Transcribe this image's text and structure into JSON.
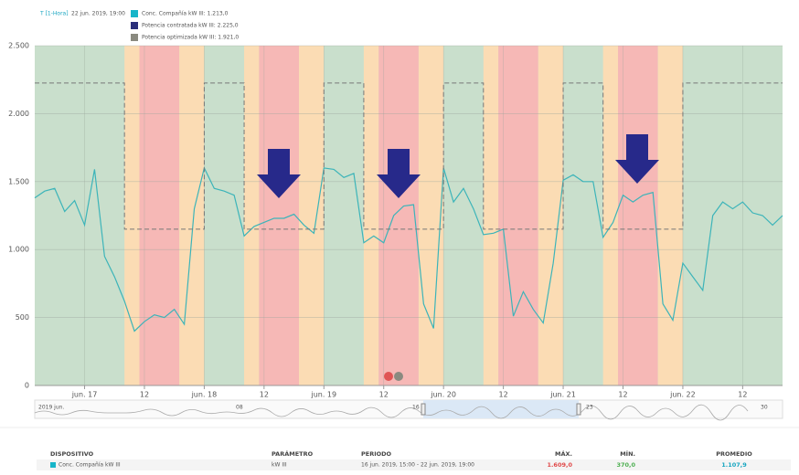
{
  "header": {
    "mode": "T [1-Hora]",
    "time": "22 jun. 2019, 19:00"
  },
  "tooltip": [
    {
      "name": "Conc. Compañía kW III: 1.213,0",
      "color": "#17b5c9"
    },
    {
      "name": "Potencia contratada kW III: 2.225,0",
      "color": "#2a2f7a"
    },
    {
      "name": "Potencia optimizada kW III: 1.921,0",
      "color": "#8a8a80"
    }
  ],
  "chart_data": {
    "type": "line",
    "background": "#c9dfcc",
    "grid": true,
    "ylim": [
      0,
      2500
    ],
    "yticks": [
      0,
      500,
      {
        "value": 1000,
        "label": "1.000"
      },
      {
        "value": 1500,
        "label": "1.500"
      },
      {
        "value": 2000,
        "label": "2.000"
      },
      {
        "value": 2500,
        "label": "2.500"
      }
    ],
    "xlim": [
      "2019-06-16 14:00",
      "2019-06-22 20:00"
    ],
    "xticks": [
      {
        "value": "2019-06-17 00:00",
        "label": "jun. 17"
      },
      {
        "value": "2019-06-17 12:00",
        "label": "12"
      },
      {
        "value": "2019-06-18 00:00",
        "label": "jun. 18"
      },
      {
        "value": "2019-06-18 12:00",
        "label": "12"
      },
      {
        "value": "2019-06-19 00:00",
        "label": "jun. 19"
      },
      {
        "value": "2019-06-19 12:00",
        "label": "12"
      },
      {
        "value": "2019-06-20 00:00",
        "label": "jun. 20"
      },
      {
        "value": "2019-06-20 12:00",
        "label": "12"
      },
      {
        "value": "2019-06-21 00:00",
        "label": "jun. 21"
      },
      {
        "value": "2019-06-21 12:00",
        "label": "12"
      },
      {
        "value": "2019-06-22 00:00",
        "label": "jun. 22"
      },
      {
        "value": "2019-06-22 12:00",
        "label": "12"
      }
    ],
    "bands": [
      {
        "start": "2019-06-17 08:00",
        "end": "2019-06-17 11:00",
        "color": "#fbdcb4"
      },
      {
        "start": "2019-06-17 11:00",
        "end": "2019-06-17 19:00",
        "color": "#f6b8b6"
      },
      {
        "start": "2019-06-17 19:00",
        "end": "2019-06-18 00:00",
        "color": "#fbdcb4"
      },
      {
        "start": "2019-06-18 08:00",
        "end": "2019-06-18 11:00",
        "color": "#fbdcb4"
      },
      {
        "start": "2019-06-18 11:00",
        "end": "2019-06-18 19:00",
        "color": "#f6b8b6"
      },
      {
        "start": "2019-06-18 19:00",
        "end": "2019-06-19 00:00",
        "color": "#fbdcb4"
      },
      {
        "start": "2019-06-19 08:00",
        "end": "2019-06-19 11:00",
        "color": "#fbdcb4"
      },
      {
        "start": "2019-06-19 11:00",
        "end": "2019-06-19 19:00",
        "color": "#f6b8b6"
      },
      {
        "start": "2019-06-19 19:00",
        "end": "2019-06-20 00:00",
        "color": "#fbdcb4"
      },
      {
        "start": "2019-06-20 08:00",
        "end": "2019-06-20 11:00",
        "color": "#fbdcb4"
      },
      {
        "start": "2019-06-20 11:00",
        "end": "2019-06-20 19:00",
        "color": "#f6b8b6"
      },
      {
        "start": "2019-06-20 19:00",
        "end": "2019-06-21 00:00",
        "color": "#fbdcb4"
      },
      {
        "start": "2019-06-21 08:00",
        "end": "2019-06-21 11:00",
        "color": "#fbdcb4"
      },
      {
        "start": "2019-06-21 11:00",
        "end": "2019-06-21 19:00",
        "color": "#f6b8b6"
      },
      {
        "start": "2019-06-21 19:00",
        "end": "2019-06-22 00:00",
        "color": "#fbdcb4"
      }
    ],
    "x": [
      "2019-06-16 14:00",
      "2019-06-16 16:00",
      "2019-06-16 18:00",
      "2019-06-16 20:00",
      "2019-06-16 22:00",
      "2019-06-17 00:00",
      "2019-06-17 02:00",
      "2019-06-17 04:00",
      "2019-06-17 06:00",
      "2019-06-17 08:00",
      "2019-06-17 10:00",
      "2019-06-17 12:00",
      "2019-06-17 14:00",
      "2019-06-17 16:00",
      "2019-06-17 18:00",
      "2019-06-17 20:00",
      "2019-06-17 22:00",
      "2019-06-18 00:00",
      "2019-06-18 02:00",
      "2019-06-18 04:00",
      "2019-06-18 06:00",
      "2019-06-18 08:00",
      "2019-06-18 10:00",
      "2019-06-18 12:00",
      "2019-06-18 14:00",
      "2019-06-18 16:00",
      "2019-06-18 18:00",
      "2019-06-18 20:00",
      "2019-06-18 22:00",
      "2019-06-19 00:00",
      "2019-06-19 02:00",
      "2019-06-19 04:00",
      "2019-06-19 06:00",
      "2019-06-19 08:00",
      "2019-06-19 10:00",
      "2019-06-19 12:00",
      "2019-06-19 14:00",
      "2019-06-19 16:00",
      "2019-06-19 18:00",
      "2019-06-19 20:00",
      "2019-06-19 22:00",
      "2019-06-20 00:00",
      "2019-06-20 02:00",
      "2019-06-20 04:00",
      "2019-06-20 06:00",
      "2019-06-20 08:00",
      "2019-06-20 10:00",
      "2019-06-20 12:00",
      "2019-06-20 14:00",
      "2019-06-20 16:00",
      "2019-06-20 18:00",
      "2019-06-20 20:00",
      "2019-06-20 22:00",
      "2019-06-21 00:00",
      "2019-06-21 02:00",
      "2019-06-21 04:00",
      "2019-06-21 06:00",
      "2019-06-21 08:00",
      "2019-06-21 10:00",
      "2019-06-21 12:00",
      "2019-06-21 14:00",
      "2019-06-21 16:00",
      "2019-06-21 18:00",
      "2019-06-21 20:00",
      "2019-06-21 22:00",
      "2019-06-22 00:00",
      "2019-06-22 02:00",
      "2019-06-22 04:00",
      "2019-06-22 06:00",
      "2019-06-22 08:00",
      "2019-06-22 10:00",
      "2019-06-22 12:00",
      "2019-06-22 14:00",
      "2019-06-22 16:00",
      "2019-06-22 18:00",
      "2019-06-22 20:00"
    ],
    "series": [
      {
        "name": "Conc. Compañía kW III",
        "color": "#3cb4b9",
        "step": false,
        "values": [
          1380,
          1430,
          1450,
          1280,
          1360,
          1180,
          1590,
          950,
          800,
          620,
          400,
          470,
          520,
          500,
          560,
          450,
          1300,
          1600,
          1450,
          1430,
          1400,
          1100,
          1170,
          1200,
          1230,
          1230,
          1260,
          1180,
          1120,
          1600,
          1590,
          1530,
          1560,
          1050,
          1100,
          1050,
          1250,
          1320,
          1330,
          600,
          420,
          1600,
          1350,
          1450,
          1300,
          1110,
          1120,
          1150,
          510,
          690,
          560,
          460,
          900,
          1510,
          1550,
          1500,
          1500,
          1090,
          1200,
          1400,
          1350,
          1400,
          1420,
          600,
          480,
          900,
          800,
          700,
          1250,
          1350,
          1300,
          1350,
          1270,
          1250,
          1180,
          1250
        ]
      },
      {
        "name": "Potencia contratada kW III",
        "color": "#777",
        "step": true,
        "values": [
          2225,
          2225,
          2225,
          2225,
          2225,
          2225,
          2225,
          2225,
          2225,
          1150,
          1150,
          1150,
          1150,
          1150,
          1150,
          1150,
          1150,
          2225,
          2225,
          2225,
          2225,
          1150,
          1150,
          1150,
          1150,
          1150,
          1150,
          1150,
          1150,
          2225,
          2225,
          2225,
          2225,
          1150,
          1150,
          1150,
          1150,
          1150,
          1150,
          1150,
          1150,
          2225,
          2225,
          2225,
          2225,
          1150,
          1150,
          1150,
          1150,
          1150,
          1150,
          1150,
          1150,
          2225,
          2225,
          2225,
          2225,
          1150,
          1150,
          1150,
          1150,
          1150,
          1150,
          1150,
          1150,
          2225,
          2225,
          2225,
          2225,
          2225,
          2225,
          2225,
          2225,
          2225,
          2225,
          2225
        ]
      }
    ]
  },
  "navigator": {
    "labels": [
      "2019 jun.",
      "08",
      "16",
      "23",
      "30"
    ]
  },
  "table": {
    "headers": [
      "DISPOSITIVO",
      "PARÁMETRO",
      "PERIODO",
      "MÁX.",
      "MÍN.",
      "PROMEDIO"
    ],
    "rows": [
      [
        "Conc. Compañía kW III",
        "kW III",
        "16 jun. 2019, 15:00 - 22 jun. 2019, 19:00",
        "1.609,0",
        "370,0",
        "1.107,9"
      ]
    ]
  }
}
